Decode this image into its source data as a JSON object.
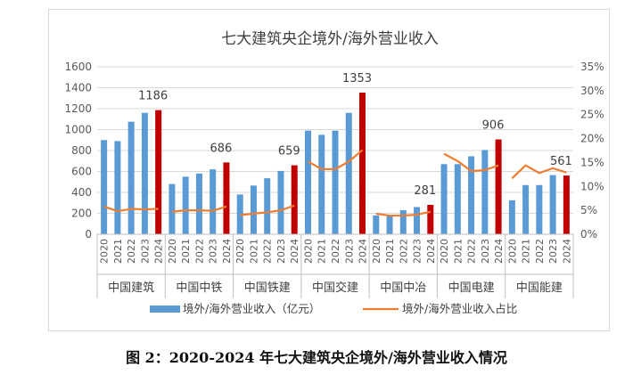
{
  "caption": "图 2：2020-2024 年七大建筑央企境外/海外营业收入情况",
  "colors": {
    "bar": "#5b9bd5",
    "bar_highlight": "#c00000",
    "line": "#ed7d31",
    "grid": "#d9d9d9",
    "text": "#595959"
  },
  "chart_data": {
    "type": "bar",
    "title": "七大建筑央企境外/海外营业收入",
    "years": [
      "2020",
      "2021",
      "2022",
      "2023",
      "2024"
    ],
    "groups": [
      "中国建筑",
      "中国中铁",
      "中国铁建",
      "中国交建",
      "中国中冶",
      "中国电建",
      "中国能建"
    ],
    "series": [
      {
        "name": "境外/海外营业收入（亿元）",
        "type": "bar",
        "axis": "left",
        "values": [
          [
            900,
            890,
            1075,
            1160,
            1186
          ],
          [
            480,
            550,
            580,
            620,
            686
          ],
          [
            380,
            465,
            535,
            605,
            659
          ],
          [
            990,
            950,
            990,
            1160,
            1353
          ],
          [
            180,
            175,
            230,
            260,
            281
          ],
          [
            670,
            670,
            745,
            805,
            906
          ],
          [
            325,
            470,
            470,
            565,
            561
          ]
        ]
      },
      {
        "name": "境外/海外营业收入占比",
        "type": "line",
        "axis": "right",
        "values": [
          [
            5.8,
            4.8,
            5.3,
            5.2,
            5.3
          ],
          [
            4.7,
            5.0,
            5.0,
            4.9,
            5.8
          ],
          [
            4.0,
            4.3,
            4.6,
            5.0,
            6.0
          ],
          [
            15.2,
            13.6,
            13.6,
            15.2,
            17.6
          ],
          [
            4.3,
            3.9,
            3.9,
            4.1,
            4.7
          ],
          [
            16.8,
            15.3,
            13.2,
            13.4,
            14.4
          ],
          [
            11.7,
            14.4,
            12.8,
            13.8,
            12.9
          ]
        ]
      }
    ],
    "labels_2024": [
      "1186",
      "686",
      "659",
      "1353",
      "281",
      "906",
      "561"
    ],
    "y_left": {
      "min": 0,
      "max": 1600,
      "step": 200,
      "ticks": [
        "0",
        "200",
        "400",
        "600",
        "800",
        "1000",
        "1200",
        "1400",
        "1600"
      ]
    },
    "y_right": {
      "min": 0,
      "max": 35,
      "step": 5,
      "ticks": [
        "0%",
        "5%",
        "10%",
        "15%",
        "20%",
        "25%",
        "30%",
        "35%"
      ]
    },
    "legend_position": "bottom",
    "grid": true
  }
}
